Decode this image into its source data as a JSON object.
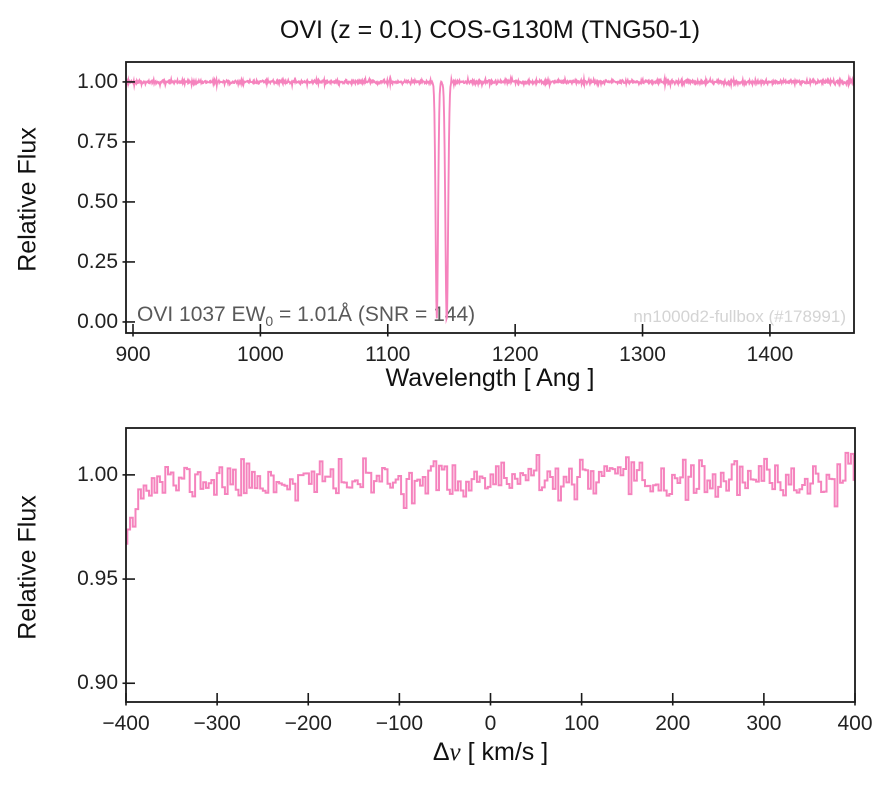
{
  "title": "OVI (z = 0.1) COS-G130M (TNG50-1)",
  "colors": {
    "line_pink": "#F583BD",
    "axis": "#1a1a1a",
    "tick_label": "#222222",
    "annotation_gray": "#595959",
    "watermark_gray": "#d4d4d4",
    "background": "#ffffff"
  },
  "top_annotation": {
    "prefix": "OVI 1037 EW",
    "sub": "0",
    "suffix": " = 1.01Å (SNR = 144)"
  },
  "bottom_xlabel_parts": {
    "delta": "Δ",
    "variable": "v",
    "units": " [ km/s ]"
  },
  "chart_data": [
    {
      "type": "line",
      "panel": "top",
      "title": "OVI (z = 0.1) COS-G130M (TNG50-1)",
      "xlabel": "Wavelength [ Ang ]",
      "ylabel": "Relative Flux",
      "xlim": [
        894.5,
        1466
      ],
      "ylim": [
        -0.046,
        1.083
      ],
      "grid": false,
      "legend": null,
      "line_color": "#F583BD",
      "line_width": 1.9,
      "xticks": [
        {
          "v": 900,
          "label": "900"
        },
        {
          "v": 1000,
          "label": "1000"
        },
        {
          "v": 1100,
          "label": "1100"
        },
        {
          "v": 1200,
          "label": "1200"
        },
        {
          "v": 1300,
          "label": "1300"
        },
        {
          "v": 1400,
          "label": "1400"
        }
      ],
      "yticks": [
        {
          "v": 0.0,
          "label": "0.00"
        },
        {
          "v": 0.25,
          "label": "0.25"
        },
        {
          "v": 0.5,
          "label": "0.50"
        },
        {
          "v": 0.75,
          "label": "0.75"
        },
        {
          "v": 1.0,
          "label": "1.00"
        }
      ],
      "series": [
        {
          "name": "COS-G130M spectrum",
          "description": "flat continuum at relative flux 1.0 with narrow OVI doublet absorption reaching ~0 near 1140 Ang",
          "baseline_flux": 1.0,
          "noise_sigma": 0.0042,
          "n_points": 1500,
          "seed": 3,
          "absorption_lines": [
            {
              "name": "OVI 1031 (z=0.1)",
              "center_ang": 1138.5,
              "depth": 0.985,
              "sigma_ang": 0.95
            },
            {
              "name": "OVI 1037 (z=0.1)",
              "center_ang": 1146.3,
              "depth": 1.0,
              "sigma_ang": 1.05
            }
          ]
        }
      ],
      "annotations": [
        {
          "text": "OVI 1037 EW0 = 1.01Å (SNR = 144)",
          "color": "#595959",
          "position": "bottom-left"
        },
        {
          "text": "nn1000d2-fullbox (#178991)",
          "color": "#d4d4d4",
          "position": "bottom-right"
        }
      ]
    },
    {
      "type": "line",
      "panel": "bottom",
      "drawstyle": "steps-mid",
      "title": "",
      "xlabel": "Δv [ km/s ]",
      "ylabel": "Relative Flux",
      "xlim": [
        -400,
        400
      ],
      "ylim": [
        0.891,
        1.0225
      ],
      "grid": false,
      "legend": null,
      "line_color": "#F583BD",
      "line_width": 2.0,
      "xticks": [
        {
          "v": -400,
          "label": "−400"
        },
        {
          "v": -300,
          "label": "−300"
        },
        {
          "v": -200,
          "label": "−200"
        },
        {
          "v": -100,
          "label": "−100"
        },
        {
          "v": 0,
          "label": "0"
        },
        {
          "v": 100,
          "label": "100"
        },
        {
          "v": 200,
          "label": "200"
        },
        {
          "v": 300,
          "label": "300"
        },
        {
          "v": 400,
          "label": "400"
        }
      ],
      "yticks": [
        {
          "v": 0.9,
          "label": "0.90"
        },
        {
          "v": 0.95,
          "label": "0.95"
        },
        {
          "v": 1.0,
          "label": "1.00"
        }
      ],
      "series": [
        {
          "name": "continuum-normalized velocity spectrum",
          "description": "noisy step spectrum fluctuating around relative flux ~0.997 (range ~0.985-1.01), dipping to ~0.973 at the -400 km/s edge",
          "baseline_flux": 0.9972,
          "noise_sigma": 0.0046,
          "n_points": 270,
          "seed": 11,
          "edge_features": [
            {
              "x_kms": -400,
              "depth": 0.025,
              "decay_kms": 12
            }
          ]
        }
      ],
      "annotations": []
    }
  ]
}
